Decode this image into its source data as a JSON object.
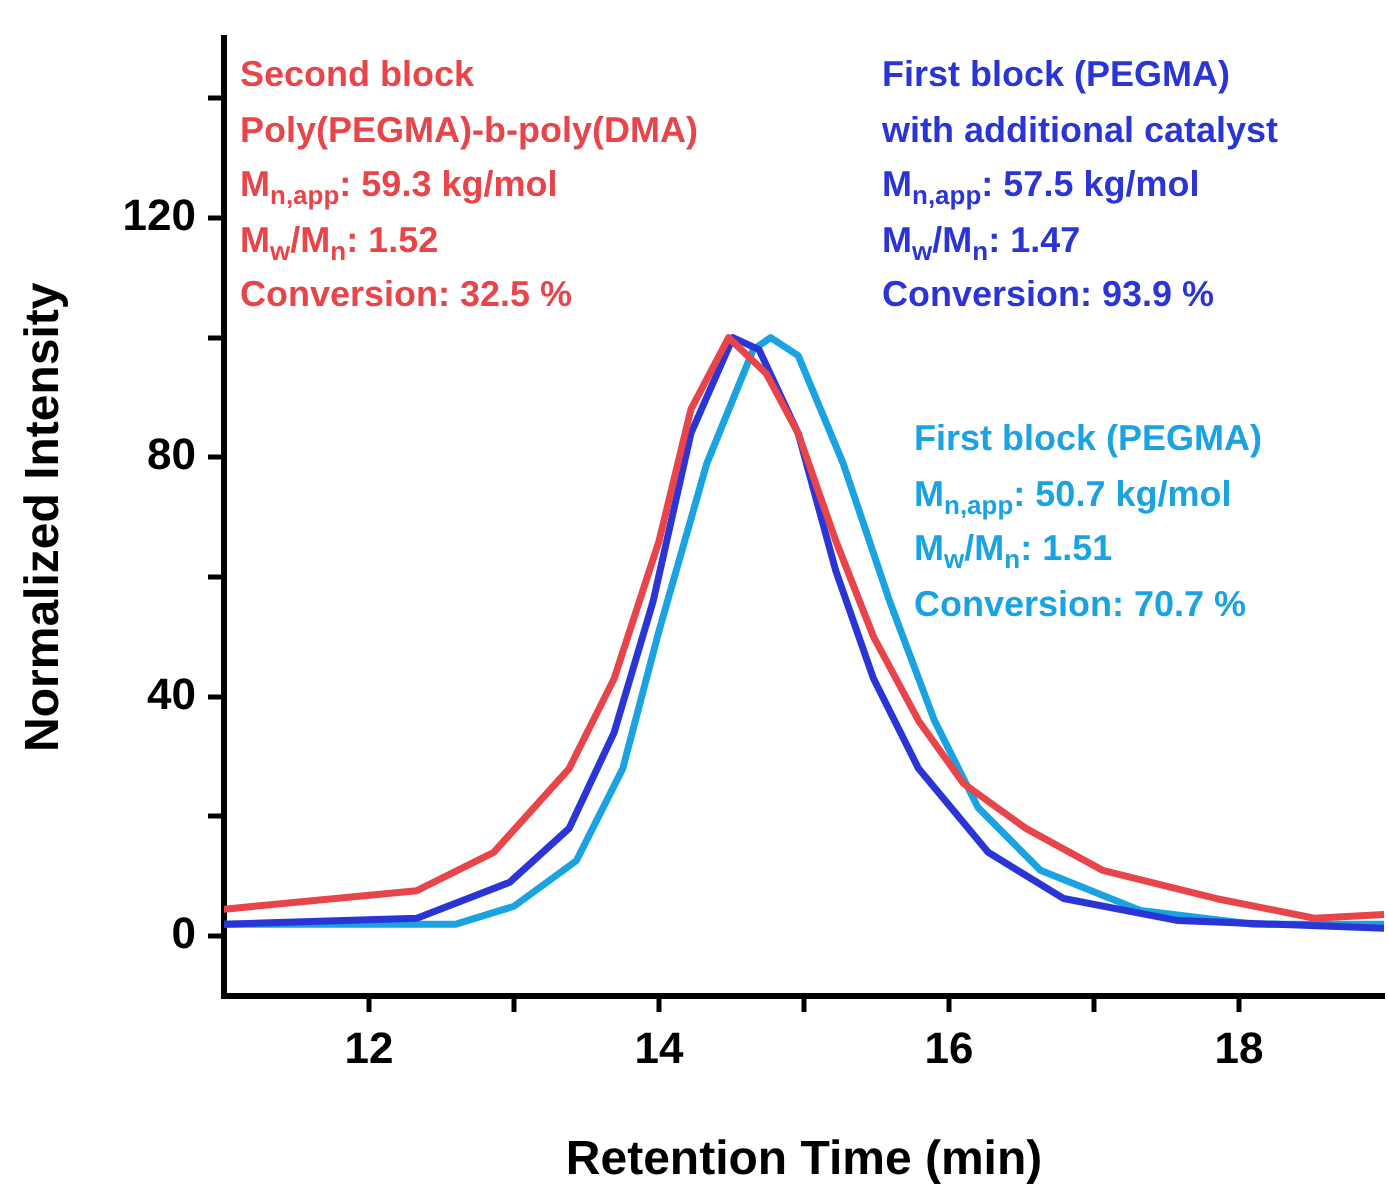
{
  "chart_data": {
    "type": "line",
    "xlabel": "Retention Time (min)",
    "ylabel": "Normalized Intensity",
    "xlim": [
      11,
      19
    ],
    "xticks": [
      12,
      {
        "value": 13,
        "label": null
      },
      14,
      {
        "value": 15,
        "label": null
      },
      16,
      {
        "value": 17,
        "label": null
      },
      18
    ],
    "ylim": [
      -10,
      150
    ],
    "yticks": [
      0,
      {
        "value": 20,
        "label": null
      },
      40,
      {
        "value": 60,
        "label": null
      },
      80,
      {
        "value": 100,
        "label": null
      },
      120,
      {
        "value": 140,
        "label": null
      }
    ],
    "grid": false,
    "legend": false,
    "marker": "none",
    "line_style": "solid",
    "series": [
      {
        "color": "#e8454a",
        "x": [
          11.0,
          12.33,
          12.86,
          13.38,
          13.69,
          14.0,
          14.22,
          14.48,
          14.74,
          14.96,
          15.22,
          15.48,
          15.79,
          16.1,
          16.53,
          17.06,
          17.84,
          18.52,
          19.0
        ],
        "values": [
          4.5,
          7.6,
          14,
          28,
          43,
          66,
          88,
          100,
          94,
          84,
          66,
          50,
          36,
          25.5,
          18,
          11,
          6.3,
          3,
          3.6
        ]
      },
      {
        "color": "#2b35d6",
        "x": [
          11.0,
          12.33,
          12.97,
          13.38,
          13.69,
          13.96,
          14.22,
          14.51,
          14.69,
          14.96,
          15.22,
          15.48,
          15.79,
          16.27,
          16.79,
          17.58,
          19.0
        ],
        "values": [
          2,
          3,
          9,
          18,
          34,
          56,
          84,
          100,
          98,
          84,
          61,
          43,
          28,
          14,
          6.3,
          2.6,
          1.3
        ]
      },
      {
        "color": "#1aa3e0",
        "x": [
          11.0,
          12.6,
          13.0,
          13.43,
          13.75,
          14.0,
          14.33,
          14.65,
          14.77,
          14.96,
          15.27,
          15.59,
          15.9,
          16.2,
          16.63,
          17.32,
          18.1,
          19.0
        ],
        "values": [
          2,
          2,
          5,
          12.6,
          28,
          51,
          79,
          98,
          100,
          97,
          79,
          56,
          36,
          21.5,
          11,
          4.3,
          2,
          2
        ]
      }
    ],
    "annotations": [
      "Second block\nPoly(PEGMA)-b-poly(DMA)\nM$_{n,app}$: 59.3 kg/mol\nM$_{w}$/M$_{n}$: 1.52\nConversion: 32.5 %",
      "First block (PEGMA)\nwith additional catalyst\nM$_{n,app}$: 57.5 kg/mol\nM$_{w}$/M$_{n}$: 1.47\nConversion: 93.9 %",
      "First block (PEGMA)\nM$_{n,app}$: 50.7 kg/mol\nM$_{w}$/M$_{n}$: 1.51\nConversion: 70.7 %"
    ]
  }
}
